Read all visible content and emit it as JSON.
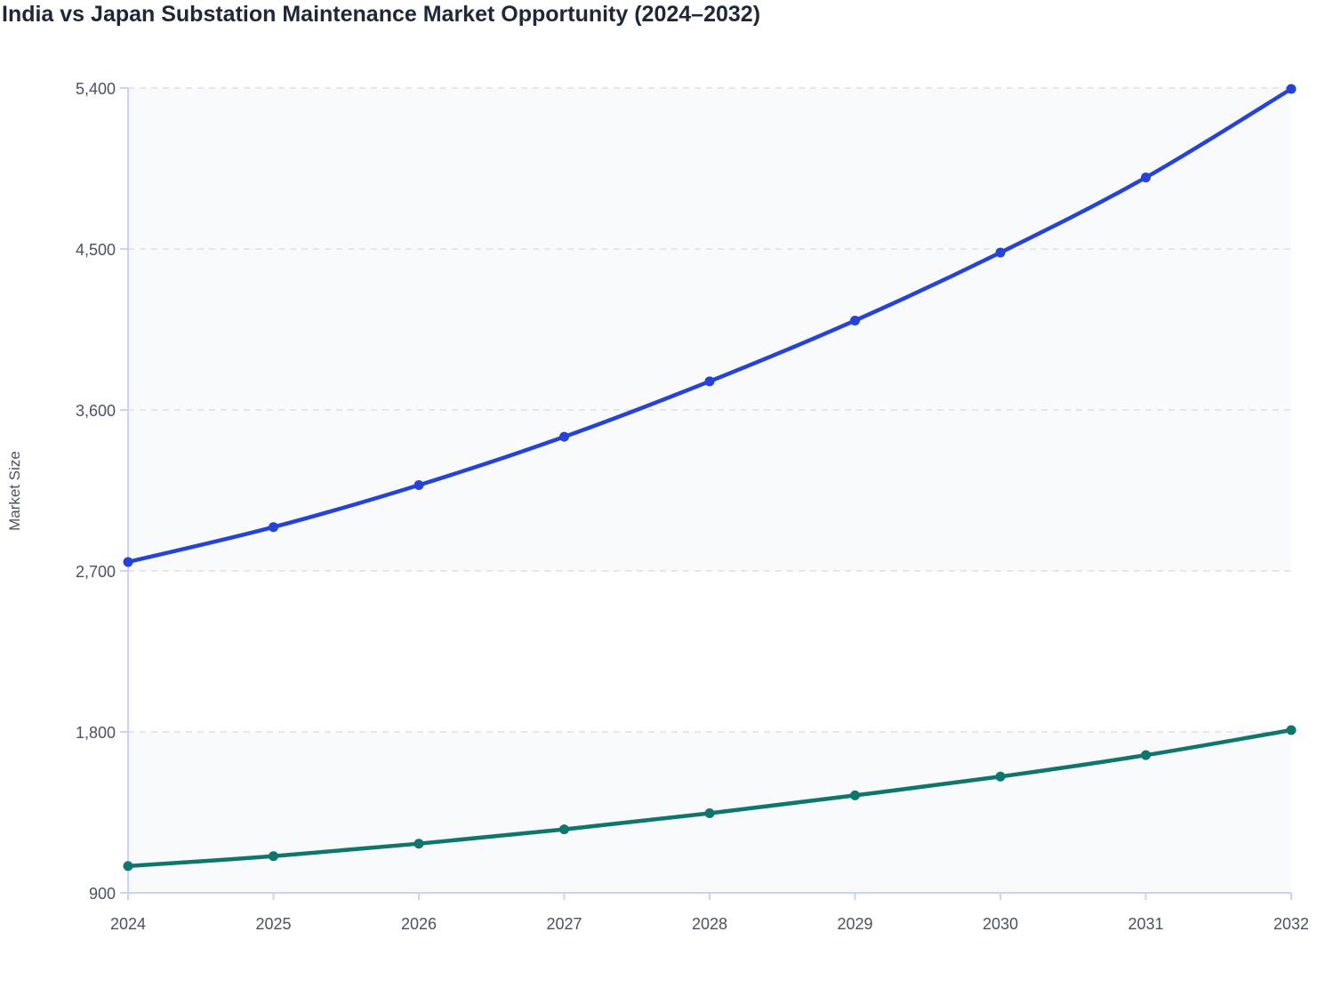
{
  "chart_data": {
    "type": "line",
    "title": "India vs Japan Substation Maintenance Market Opportunity (2024–2032)",
    "xlabel": "",
    "ylabel": "Market Size",
    "x": [
      "2024",
      "2025",
      "2026",
      "2027",
      "2028",
      "2029",
      "2030",
      "2031",
      "2032"
    ],
    "ylim": [
      900,
      5400
    ],
    "yticks": [
      900,
      1800,
      2700,
      3600,
      4500,
      5400
    ],
    "ytick_labels": [
      "900",
      "1,800",
      "2,700",
      "3,600",
      "4,500",
      "5,400"
    ],
    "grid": "horizontal dashed",
    "legend": "none",
    "shaded_bands": [
      [
        900,
        1800
      ],
      [
        2700,
        5400
      ]
    ],
    "series": [
      {
        "color": "#2643d9",
        "values": [
          2750,
          2945,
          3180,
          3450,
          3760,
          4100,
          4480,
          4900,
          5395
        ]
      },
      {
        "color": "#0f766e",
        "values": [
          1050,
          1105,
          1175,
          1255,
          1345,
          1445,
          1550,
          1670,
          1810
        ]
      }
    ]
  }
}
